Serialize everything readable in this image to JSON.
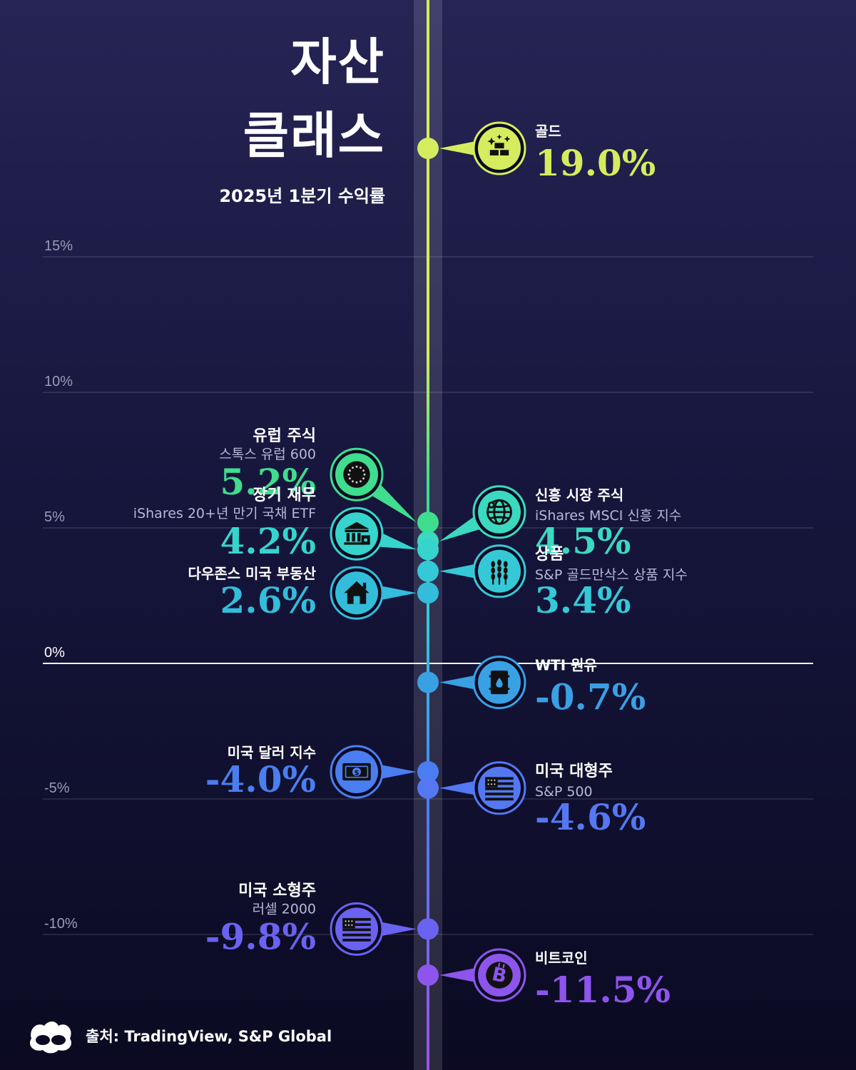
{
  "header": {
    "title_line1": "자산",
    "title_line2": "클래스",
    "subtitle": "2025년 1분기 수익률"
  },
  "footer": {
    "source": "출처: TradingView, S&P Global"
  },
  "chart_data": {
    "type": "scatter",
    "ylim": [
      -12,
      20
    ],
    "y_ticks": [
      {
        "value": 15,
        "label": "15%"
      },
      {
        "value": 10,
        "label": "10%"
      },
      {
        "value": 5,
        "label": "5%"
      },
      {
        "value": 0,
        "label": "0%"
      },
      {
        "value": -5,
        "label": "-5%"
      },
      {
        "value": -10,
        "label": "-10%"
      }
    ],
    "grid": true,
    "points": [
      {
        "name": "골드",
        "sub": "",
        "value": 19.0,
        "label": "19.0%",
        "side": "right",
        "icon": "gold-bars-icon",
        "color": "#d5ec5e"
      },
      {
        "name": "유럽 주식",
        "sub": "스톡스 유럽 600",
        "value": 5.2,
        "label": "5.2%",
        "side": "left",
        "icon": "eu-flag-icon",
        "color": "#3fdd8d"
      },
      {
        "name": "신흥 시장 주식",
        "sub": "iShares MSCI 신흥 지수",
        "value": 4.5,
        "label": "4.5%",
        "side": "right",
        "icon": "globe-icon",
        "color": "#3bd9bf"
      },
      {
        "name": "장기 재무",
        "sub": "iShares 20+년 만기 국채 ETF",
        "value": 4.2,
        "label": "4.2%",
        "side": "left",
        "icon": "bank-icon",
        "color": "#36d4cd"
      },
      {
        "name": "상품",
        "sub": "S&P 골드만삭스 상품 지수",
        "value": 3.4,
        "label": "3.4%",
        "side": "right",
        "icon": "wheat-icon",
        "color": "#35c9d8"
      },
      {
        "name": "다우존스 미국 부동산",
        "sub": "",
        "value": 2.6,
        "label": "2.6%",
        "side": "left",
        "icon": "house-icon",
        "color": "#34bcdb"
      },
      {
        "name": "WTI 원유",
        "sub": "",
        "value": -0.7,
        "label": "-0.7%",
        "side": "right",
        "icon": "oil-barrel-icon",
        "color": "#3aa0e4"
      },
      {
        "name": "미국 달러 지수",
        "sub": "",
        "value": -4.0,
        "label": "-4.0%",
        "side": "left",
        "icon": "dollar-bill-icon",
        "color": "#4a7ef0"
      },
      {
        "name": "미국 대형주",
        "sub": "S&P 500",
        "value": -4.6,
        "label": "-4.6%",
        "side": "right",
        "icon": "us-flag-icon",
        "color": "#5478f2"
      },
      {
        "name": "미국 소형주",
        "sub": "러셀 2000",
        "value": -9.8,
        "label": "-9.8%",
        "side": "left",
        "icon": "us-flag-icon",
        "color": "#6a62f0"
      },
      {
        "name": "비트코인",
        "sub": "",
        "value": -11.5,
        "label": "-11.5%",
        "side": "right",
        "icon": "bitcoin-icon",
        "color": "#8d55ec"
      }
    ]
  }
}
